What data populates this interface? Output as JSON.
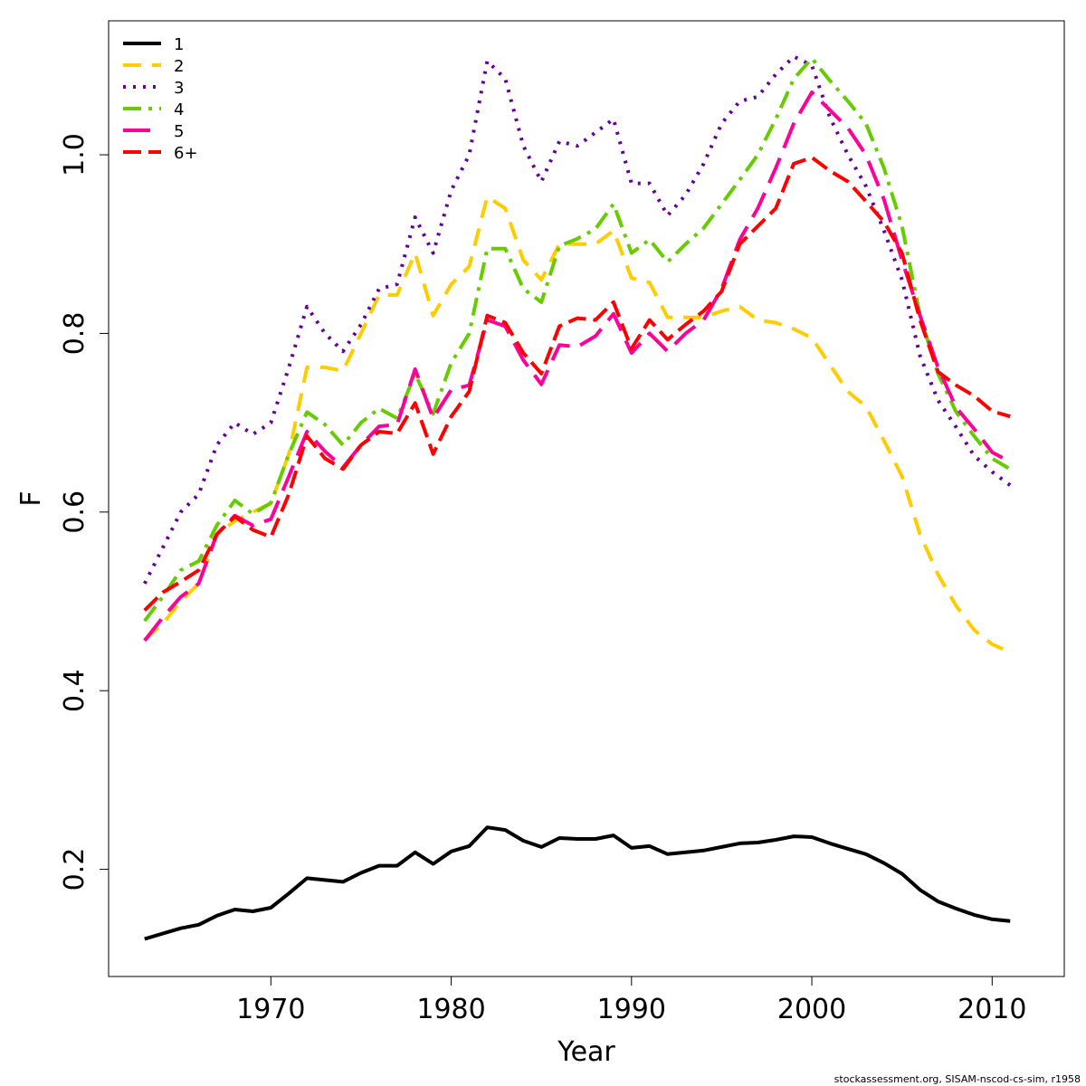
{
  "chart_data": {
    "type": "line",
    "xlabel": "Year",
    "ylabel": "F",
    "xlim": [
      1961,
      2014
    ],
    "ylim": [
      0.08,
      1.15
    ],
    "x_ticks": [
      1970,
      1980,
      1990,
      2000,
      2010
    ],
    "y_ticks": [
      0.2,
      0.4,
      0.6,
      0.8,
      1.0
    ],
    "y_tick_labels": [
      "0.2",
      "0.4",
      "0.6",
      "0.8",
      "1.0"
    ],
    "grid": false,
    "legend_position": "top-left",
    "x": [
      1963,
      1964,
      1965,
      1966,
      1967,
      1968,
      1969,
      1970,
      1971,
      1972,
      1973,
      1974,
      1975,
      1976,
      1977,
      1978,
      1979,
      1980,
      1981,
      1982,
      1983,
      1984,
      1985,
      1986,
      1987,
      1988,
      1989,
      1990,
      1991,
      1992,
      1993,
      1994,
      1995,
      1996,
      1997,
      1998,
      1999,
      2000,
      2001,
      2002,
      2003,
      2004,
      2005,
      2006,
      2007,
      2008,
      2009,
      2010,
      2011
    ],
    "series": [
      {
        "name": "1",
        "color": "#000000",
        "dash": "",
        "values": [
          0.122,
          0.128,
          0.134,
          0.138,
          0.148,
          0.155,
          0.153,
          0.157,
          0.173,
          0.19,
          0.188,
          0.186,
          0.196,
          0.204,
          0.204,
          0.219,
          0.206,
          0.22,
          0.226,
          0.247,
          0.244,
          0.232,
          0.225,
          0.235,
          0.234,
          0.234,
          0.238,
          0.224,
          0.226,
          0.217,
          0.219,
          0.221,
          0.225,
          0.229,
          0.23,
          0.233,
          0.237,
          0.236,
          0.229,
          0.223,
          0.217,
          0.207,
          0.195,
          0.177,
          0.164,
          0.156,
          0.149,
          0.144,
          0.142
        ]
      },
      {
        "name": "2",
        "color": "#ffcc00",
        "dash": "20,12",
        "values": [
          0.457,
          0.475,
          0.5,
          0.52,
          0.575,
          0.59,
          0.6,
          0.61,
          0.665,
          0.762,
          0.762,
          0.758,
          0.8,
          0.843,
          0.843,
          0.89,
          0.82,
          0.855,
          0.875,
          0.953,
          0.94,
          0.882,
          0.86,
          0.9,
          0.9,
          0.9,
          0.915,
          0.862,
          0.857,
          0.818,
          0.818,
          0.818,
          0.825,
          0.83,
          0.815,
          0.812,
          0.805,
          0.795,
          0.765,
          0.735,
          0.718,
          0.68,
          0.64,
          0.575,
          0.53,
          0.495,
          0.468,
          0.452,
          0.443
        ]
      },
      {
        "name": "3",
        "color": "#660099",
        "dash": "3,8",
        "values": [
          0.52,
          0.56,
          0.6,
          0.62,
          0.675,
          0.7,
          0.687,
          0.7,
          0.762,
          0.83,
          0.8,
          0.78,
          0.81,
          0.85,
          0.855,
          0.93,
          0.89,
          0.96,
          1.0,
          1.105,
          1.085,
          1.01,
          0.97,
          1.015,
          1.01,
          1.025,
          1.04,
          0.968,
          0.968,
          0.932,
          0.955,
          0.99,
          1.035,
          1.06,
          1.065,
          1.09,
          1.11,
          1.1,
          1.042,
          1.0,
          0.965,
          0.915,
          0.86,
          0.775,
          0.725,
          0.695,
          0.663,
          0.645,
          0.63
        ]
      },
      {
        "name": "4",
        "color": "#66cc00",
        "dash": "20,8,4,8",
        "values": [
          0.478,
          0.505,
          0.535,
          0.545,
          0.585,
          0.613,
          0.598,
          0.61,
          0.665,
          0.712,
          0.698,
          0.675,
          0.7,
          0.716,
          0.705,
          0.755,
          0.71,
          0.767,
          0.8,
          0.895,
          0.895,
          0.85,
          0.835,
          0.898,
          0.906,
          0.917,
          0.945,
          0.89,
          0.905,
          0.88,
          0.9,
          0.918,
          0.945,
          0.972,
          1.0,
          1.04,
          1.085,
          1.108,
          1.083,
          1.06,
          1.035,
          0.985,
          0.92,
          0.82,
          0.755,
          0.712,
          0.685,
          0.66,
          0.648
        ]
      },
      {
        "name": "5",
        "color": "#ff0099",
        "dash": "30,12",
        "values": [
          0.456,
          0.482,
          0.505,
          0.52,
          0.575,
          0.596,
          0.585,
          0.592,
          0.64,
          0.69,
          0.668,
          0.65,
          0.675,
          0.696,
          0.698,
          0.76,
          0.705,
          0.737,
          0.742,
          0.815,
          0.808,
          0.77,
          0.743,
          0.787,
          0.785,
          0.797,
          0.822,
          0.778,
          0.8,
          0.78,
          0.8,
          0.815,
          0.85,
          0.905,
          0.94,
          0.985,
          1.035,
          1.07,
          1.05,
          1.03,
          1.0,
          0.95,
          0.882,
          0.82,
          0.762,
          0.717,
          0.693,
          0.667,
          0.656
        ]
      },
      {
        "name": "6+",
        "color": "#ff0000",
        "dash": "20,8",
        "values": [
          0.49,
          0.51,
          0.522,
          0.535,
          0.575,
          0.595,
          0.58,
          0.572,
          0.62,
          0.685,
          0.66,
          0.648,
          0.675,
          0.69,
          0.688,
          0.722,
          0.665,
          0.707,
          0.735,
          0.82,
          0.812,
          0.778,
          0.755,
          0.808,
          0.817,
          0.815,
          0.835,
          0.783,
          0.815,
          0.793,
          0.81,
          0.825,
          0.847,
          0.9,
          0.92,
          0.94,
          0.99,
          0.997,
          0.982,
          0.97,
          0.948,
          0.925,
          0.89,
          0.815,
          0.757,
          0.742,
          0.73,
          0.713,
          0.707
        ]
      }
    ]
  },
  "footer": "stockassessment.org, SISAM-nscod-cs-sim, r1958"
}
